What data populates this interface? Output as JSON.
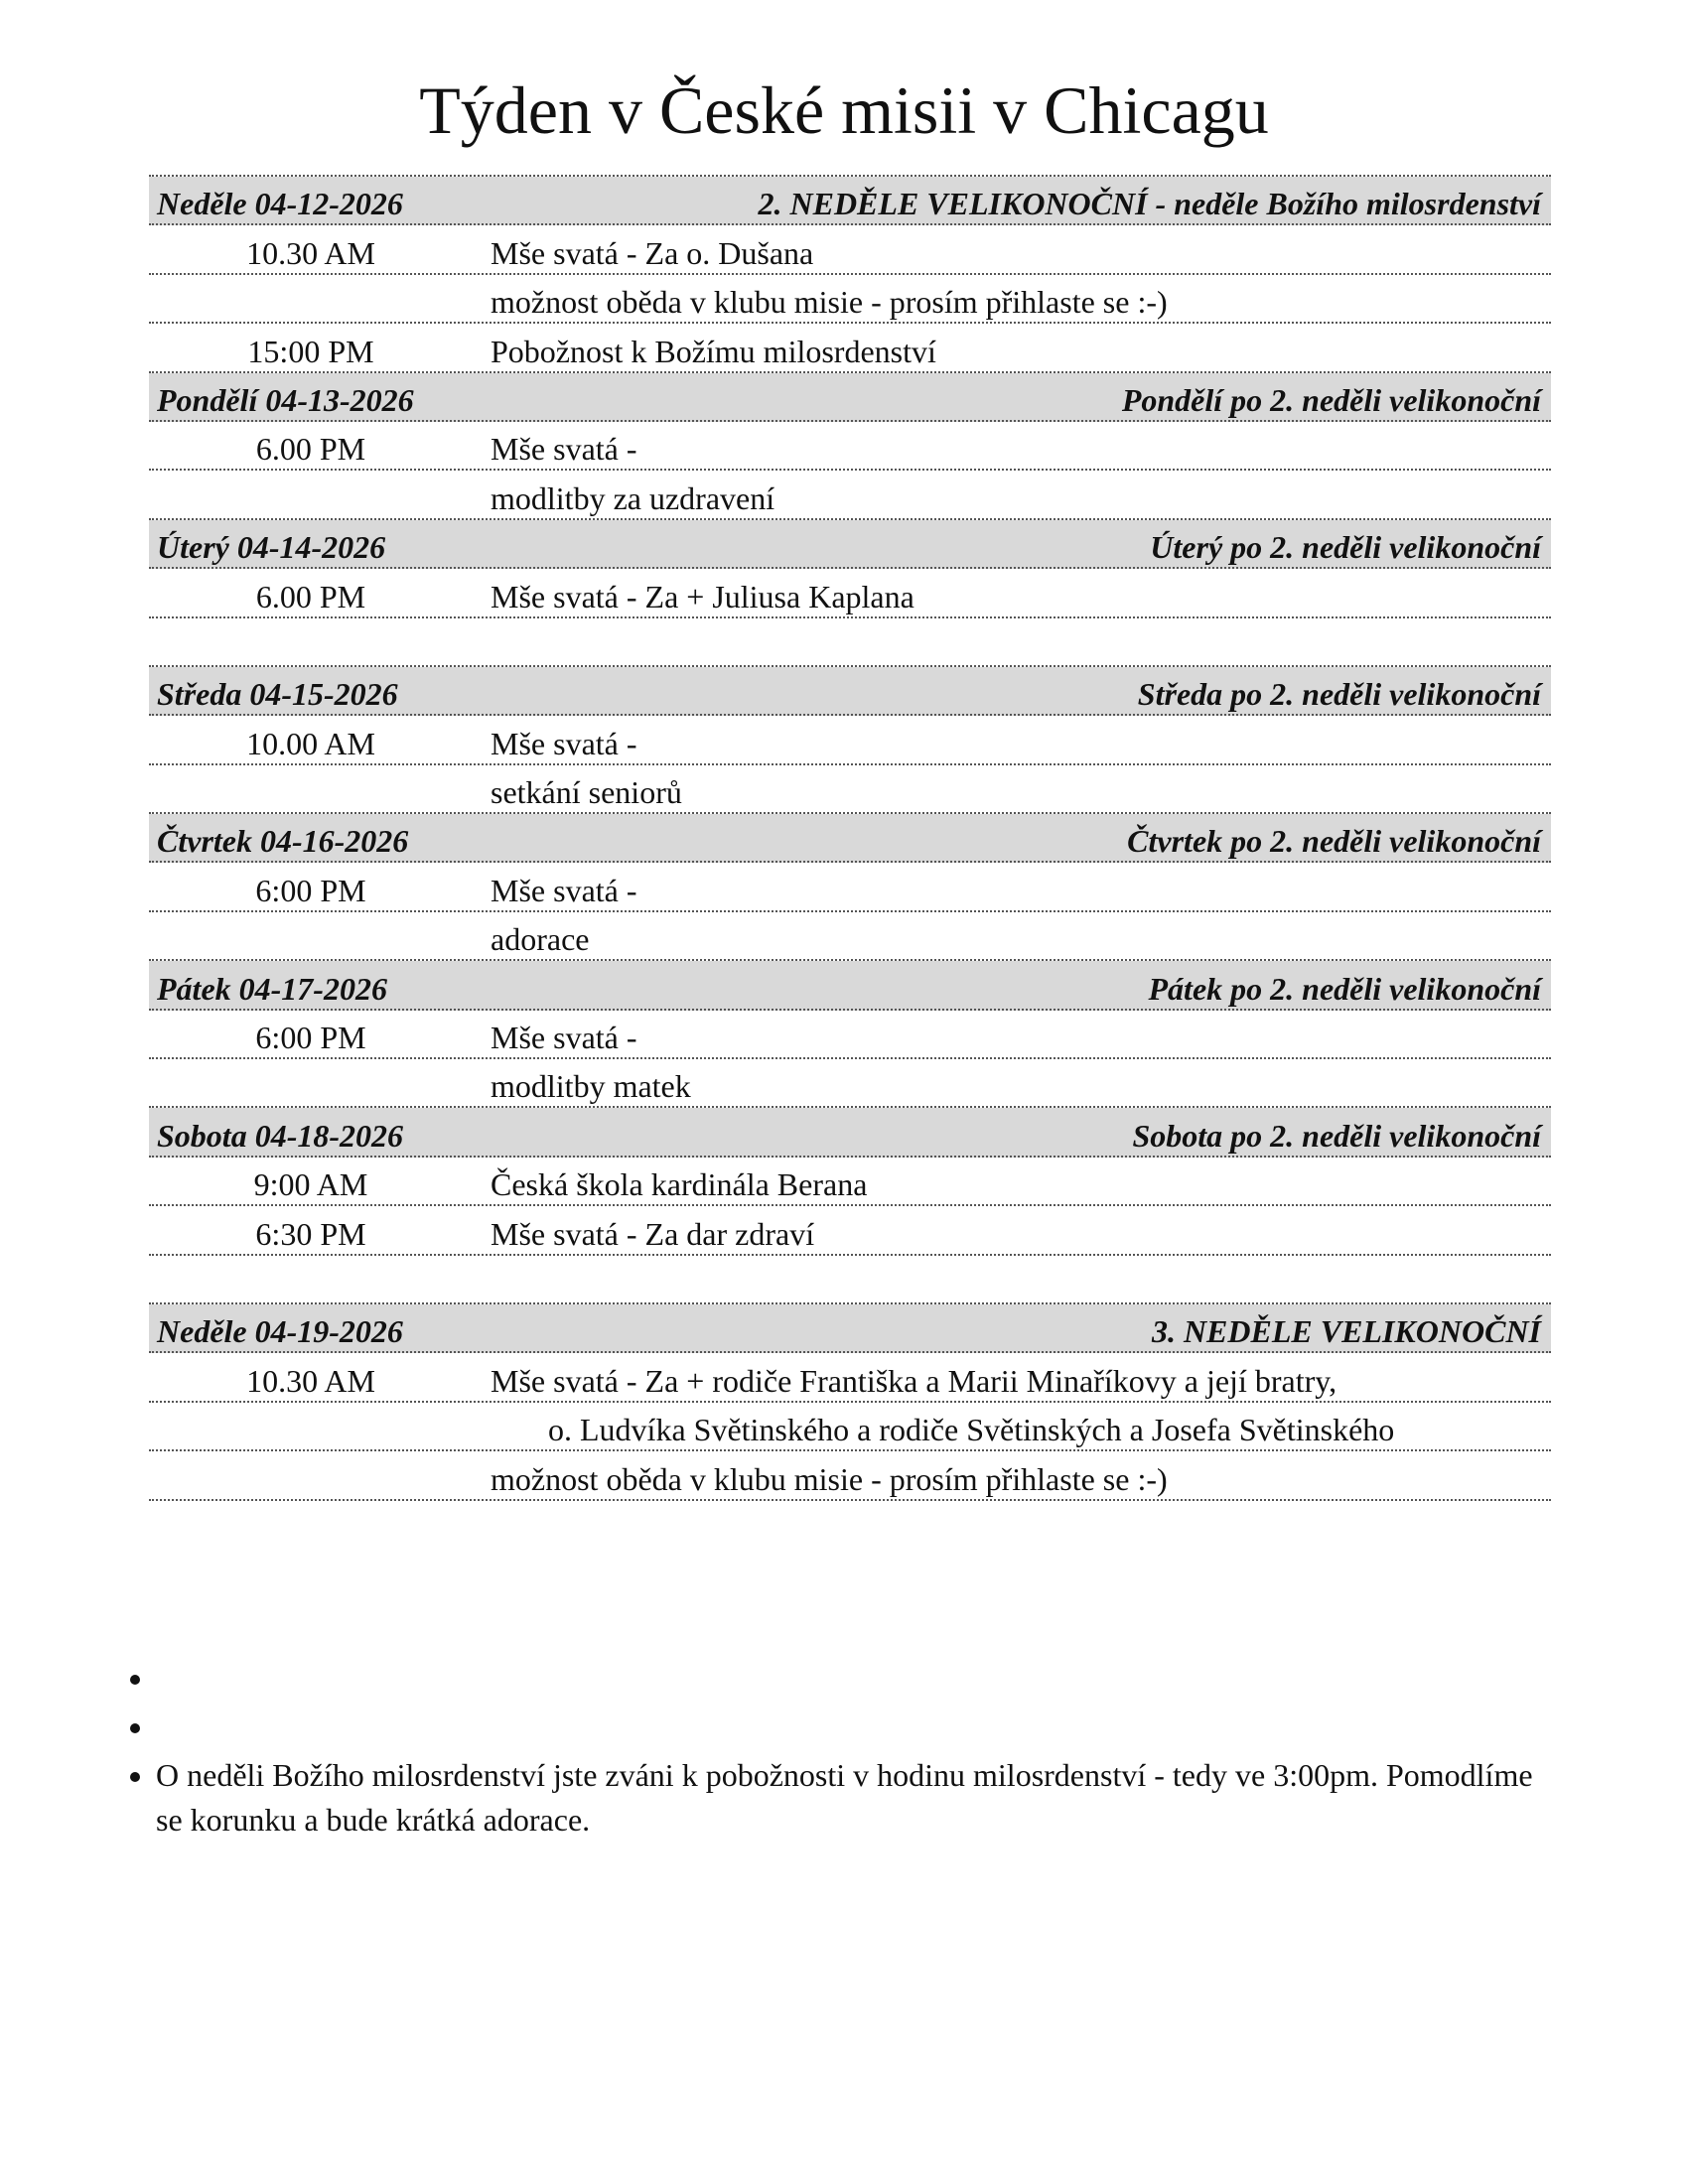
{
  "title": "Týden v České misii v Chicagu",
  "days": [
    {
      "date": "Neděle 04-12-2026",
      "feast": "2. NEDĚLE VELIKONOČNÍ - neděle Božího milosrdenství",
      "rows": [
        {
          "time": "10.30 AM",
          "text": "Mše svatá - Za o. Dušana"
        },
        {
          "time": "",
          "text": "možnost oběda v klubu misie - prosím přihlaste se :-)"
        },
        {
          "time": "15:00 PM",
          "text": "Pobožnost k Božímu milosrdenství"
        }
      ]
    },
    {
      "date": "Pondělí 04-13-2026",
      "feast": "Pondělí po 2. neděli velikonoční",
      "rows": [
        {
          "time": "6.00 PM",
          "text": "Mše svatá -"
        },
        {
          "time": "",
          "text": "modlitby za uzdravení"
        }
      ]
    },
    {
      "date": "Úterý 04-14-2026",
      "feast": "Úterý po 2. neděli velikonoční",
      "rows": [
        {
          "time": "6.00 PM",
          "text": "Mše svatá - Za + Juliusa Kaplana"
        },
        {
          "time": "",
          "text": ""
        }
      ]
    },
    {
      "date": "Středa 04-15-2026",
      "feast": "Středa po 2. neděli velikonoční",
      "rows": [
        {
          "time": "10.00 AM",
          "text": "Mše svatá -"
        },
        {
          "time": "",
          "text": "setkání seniorů"
        }
      ]
    },
    {
      "date": "Čtvrtek 04-16-2026",
      "feast": "Čtvrtek po 2. neděli velikonoční",
      "rows": [
        {
          "time": "6:00 PM",
          "text": "Mše svatá -"
        },
        {
          "time": "",
          "text": "adorace"
        }
      ]
    },
    {
      "date": "Pátek 04-17-2026",
      "feast": "Pátek po 2. neděli velikonoční",
      "rows": [
        {
          "time": "6:00 PM",
          "text": "Mše svatá -"
        },
        {
          "time": "",
          "text": "modlitby matek"
        }
      ]
    },
    {
      "date": "Sobota 04-18-2026",
      "feast": "Sobota po 2. neděli velikonoční",
      "rows": [
        {
          "time": "9:00 AM",
          "text": "Česká škola kardinála Berana"
        },
        {
          "time": "6:30 PM",
          "text": "Mše svatá - Za dar zdraví"
        },
        {
          "time": "",
          "text": ""
        }
      ]
    },
    {
      "date": "Neděle 04-19-2026",
      "feast": "3. NEDĚLE VELIKONOČNÍ",
      "rows": [
        {
          "time": "10.30 AM",
          "text": "Mše svatá - Za + rodiče Františka a Marii Minaříkovy a její bratry,"
        },
        {
          "time": "",
          "text": "o. Ludvíka Světinského a rodiče Světinských a Josefa Světinského",
          "indent": true
        },
        {
          "time": "",
          "text": "možnost oběda v klubu misie - prosím přihlaste se :-)"
        }
      ]
    }
  ],
  "notes": [
    "",
    "",
    "O neděli Božího milosrdenství jste zváni k pobožnosti v hodinu milosrdenství - tedy ve 3:00pm. Pomodlíme se korunku a bude krátká adorace."
  ]
}
